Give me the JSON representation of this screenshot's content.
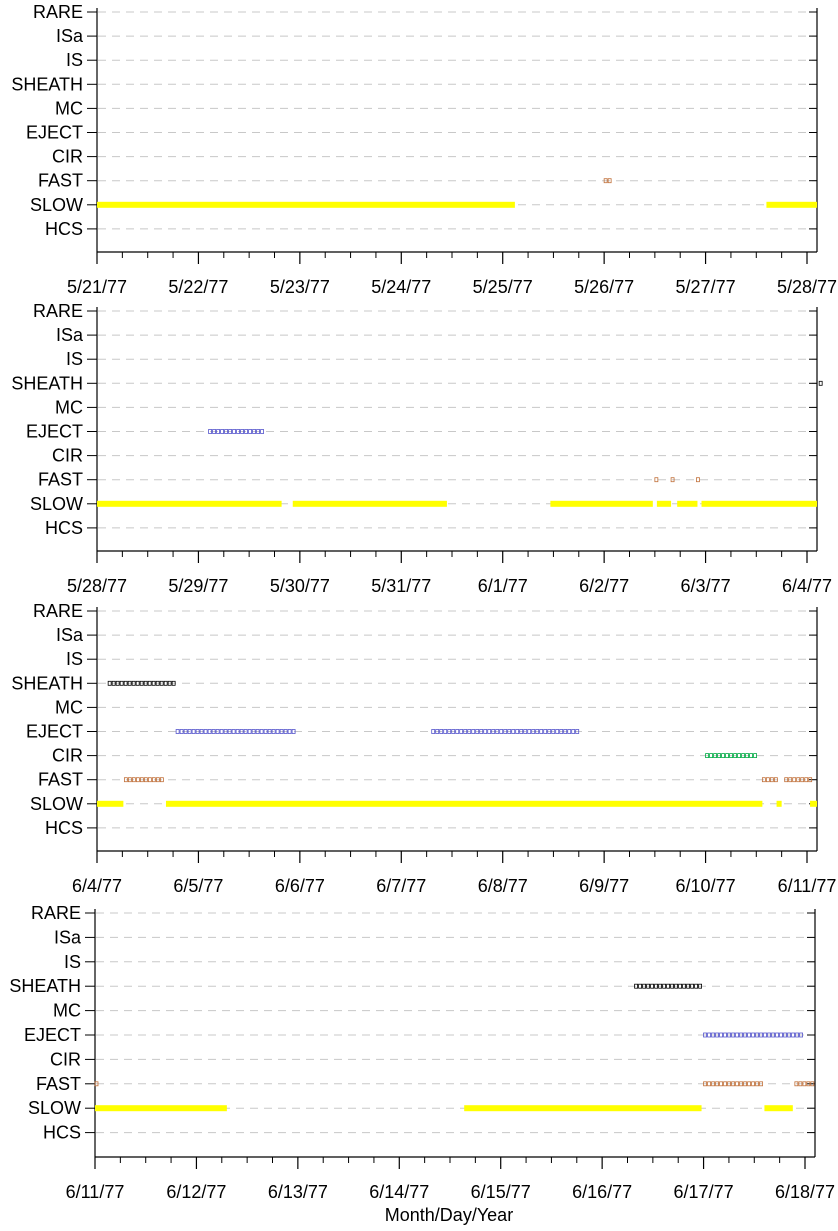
{
  "xlabel": "Month/Day/Year",
  "categories": [
    "RARE",
    "ISa",
    "IS",
    "SHEATH",
    "MC",
    "EJECT",
    "CIR",
    "FAST",
    "SLOW",
    "HCS"
  ],
  "colors": {
    "SLOW": "#ffff00",
    "FAST": "#c0703a",
    "EJECT": "#5555cc",
    "SHEATH": "#000000",
    "CIR": "#00aa44",
    "grid": "#c8c8c8"
  },
  "chart_data": [
    {
      "type": "timeline",
      "panel": 1,
      "xlim": [
        "5/21/77",
        "5/28/77"
      ],
      "tick_labels": [
        "5/21/77",
        "5/22/77",
        "5/23/77",
        "5/24/77",
        "5/25/77",
        "5/26/77",
        "5/27/77",
        "5/28/77"
      ],
      "series": [
        {
          "name": "SLOW",
          "intervals": [
            [
              0.0,
              4.12
            ],
            [
              6.6,
              7.15
            ]
          ]
        },
        {
          "name": "FAST",
          "intervals": [
            [
              5.0,
              5.08
            ]
          ]
        }
      ]
    },
    {
      "type": "timeline",
      "panel": 2,
      "xlim": [
        "5/28/77",
        "6/4/77"
      ],
      "tick_labels": [
        "5/28/77",
        "5/29/77",
        "5/30/77",
        "5/31/77",
        "6/1/77",
        "6/2/77",
        "6/3/77",
        "6/4/77"
      ],
      "series": [
        {
          "name": "SLOW",
          "intervals": [
            [
              0.0,
              1.82
            ],
            [
              1.93,
              3.45
            ],
            [
              4.47,
              5.48
            ],
            [
              5.52,
              5.66
            ],
            [
              5.72,
              5.92
            ],
            [
              5.96,
              7.15
            ]
          ]
        },
        {
          "name": "FAST",
          "intervals": [
            [
              5.5,
              5.54
            ],
            [
              5.66,
              5.7
            ],
            [
              5.91,
              5.95
            ]
          ]
        },
        {
          "name": "EJECT",
          "intervals": [
            [
              1.1,
              1.65
            ]
          ]
        },
        {
          "name": "SHEATH",
          "intervals": [
            [
              7.12,
              7.15
            ]
          ]
        }
      ]
    },
    {
      "type": "timeline",
      "panel": 3,
      "xlim": [
        "6/4/77",
        "6/11/77"
      ],
      "tick_labels": [
        "6/4/77",
        "6/5/77",
        "6/6/77",
        "6/7/77",
        "6/8/77",
        "6/9/77",
        "6/10/77",
        "6/11/77"
      ],
      "series": [
        {
          "name": "SLOW",
          "intervals": [
            [
              0.0,
              0.26
            ],
            [
              0.68,
              6.56
            ],
            [
              6.7,
              6.75
            ],
            [
              7.03,
              7.15
            ]
          ]
        },
        {
          "name": "FAST",
          "intervals": [
            [
              0.27,
              0.68
            ],
            [
              6.56,
              6.73
            ],
            [
              6.78,
              7.04
            ]
          ]
        },
        {
          "name": "CIR",
          "intervals": [
            [
              6.0,
              6.53
            ]
          ]
        },
        {
          "name": "EJECT",
          "intervals": [
            [
              0.78,
              1.98
            ],
            [
              3.3,
              4.74
            ]
          ]
        },
        {
          "name": "SHEATH",
          "intervals": [
            [
              0.11,
              0.77
            ]
          ]
        }
      ]
    },
    {
      "type": "timeline",
      "panel": 4,
      "xlim": [
        "6/11/77",
        "6/18/77"
      ],
      "tick_labels": [
        "6/11/77",
        "6/12/77",
        "6/13/77",
        "6/14/77",
        "6/15/77",
        "6/16/77",
        "6/17/77",
        "6/18/77"
      ],
      "series": [
        {
          "name": "SLOW",
          "intervals": [
            [
              0.0,
              1.3
            ],
            [
              3.64,
              5.98
            ],
            [
              6.6,
              6.88
            ]
          ]
        },
        {
          "name": "FAST",
          "intervals": [
            [
              0.0,
              0.02
            ],
            [
              6.0,
              6.6
            ],
            [
              6.9,
              7.15
            ]
          ]
        },
        {
          "name": "EJECT",
          "intervals": [
            [
              6.0,
              6.98
            ]
          ]
        },
        {
          "name": "SHEATH",
          "intervals": [
            [
              5.32,
              5.98
            ]
          ]
        }
      ]
    }
  ]
}
